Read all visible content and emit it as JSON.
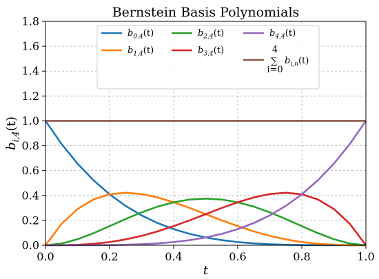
{
  "chart_data": {
    "type": "line",
    "title": "Bernstein Basis Polynomials",
    "xlabel": "t",
    "ylabel": "b_{i,4}(t)",
    "xlim": [
      0.0,
      1.0
    ],
    "ylim": [
      0.0,
      1.8
    ],
    "xticks": [
      "0.0",
      "0.2",
      "0.4",
      "0.6",
      "0.8",
      "1.0"
    ],
    "yticks": [
      "0.0",
      "0.2",
      "0.4",
      "0.6",
      "0.8",
      "1.0",
      "1.2",
      "1.4",
      "1.6",
      "1.8"
    ],
    "grid": true,
    "legend_position": "top-center",
    "x": [
      0.0,
      0.05,
      0.1,
      0.15,
      0.2,
      0.25,
      0.3,
      0.35,
      0.4,
      0.45,
      0.5,
      0.55,
      0.6,
      0.65,
      0.7,
      0.75,
      0.8,
      0.85,
      0.9,
      0.95,
      1.0
    ],
    "series": [
      {
        "name": "b_{0,4}(t)",
        "color": "#1f77b4",
        "values": [
          1.0,
          0.8145,
          0.6561,
          0.522,
          0.4096,
          0.3164,
          0.2401,
          0.1785,
          0.1296,
          0.0915,
          0.0625,
          0.041,
          0.0256,
          0.015,
          0.0081,
          0.0039,
          0.0016,
          0.0005,
          0.0001,
          0.0,
          0.0
        ]
      },
      {
        "name": "b_{1,4}(t)",
        "color": "#ff7f0e",
        "values": [
          0.0,
          0.1715,
          0.2916,
          0.3685,
          0.4096,
          0.4219,
          0.4116,
          0.3845,
          0.3456,
          0.2995,
          0.25,
          0.2005,
          0.1536,
          0.1115,
          0.0756,
          0.0469,
          0.0256,
          0.0115,
          0.0036,
          0.0005,
          0.0
        ]
      },
      {
        "name": "b_{2,4}(t)",
        "color": "#2ca02c",
        "values": [
          0.0,
          0.0135,
          0.0486,
          0.0975,
          0.1536,
          0.2109,
          0.2646,
          0.3105,
          0.3456,
          0.3675,
          0.375,
          0.3675,
          0.3456,
          0.3105,
          0.2646,
          0.2109,
          0.1536,
          0.0975,
          0.0486,
          0.0135,
          0.0
        ]
      },
      {
        "name": "b_{3,4}(t)",
        "color": "#d62728",
        "values": [
          0.0,
          0.0005,
          0.0036,
          0.0115,
          0.0256,
          0.0469,
          0.0756,
          0.1115,
          0.1536,
          0.2005,
          0.25,
          0.2995,
          0.3456,
          0.3845,
          0.4116,
          0.4219,
          0.4096,
          0.3685,
          0.2916,
          0.1715,
          0.0
        ]
      },
      {
        "name": "b_{4,4}(t)",
        "color": "#9467bd",
        "values": [
          0.0,
          0.0,
          0.0001,
          0.0005,
          0.0016,
          0.0039,
          0.0081,
          0.015,
          0.0256,
          0.041,
          0.0625,
          0.0915,
          0.1296,
          0.1785,
          0.2401,
          0.3164,
          0.4096,
          0.522,
          0.6561,
          0.8145,
          1.0
        ]
      },
      {
        "name": "sum_{i=0}^{4} b_{i,n}(t)",
        "color": "#8c564b",
        "values": [
          1.0,
          1.0,
          1.0,
          1.0,
          1.0,
          1.0,
          1.0,
          1.0,
          1.0,
          1.0,
          1.0,
          1.0,
          1.0,
          1.0,
          1.0,
          1.0,
          1.0,
          1.0,
          1.0,
          1.0,
          1.0
        ]
      }
    ]
  }
}
